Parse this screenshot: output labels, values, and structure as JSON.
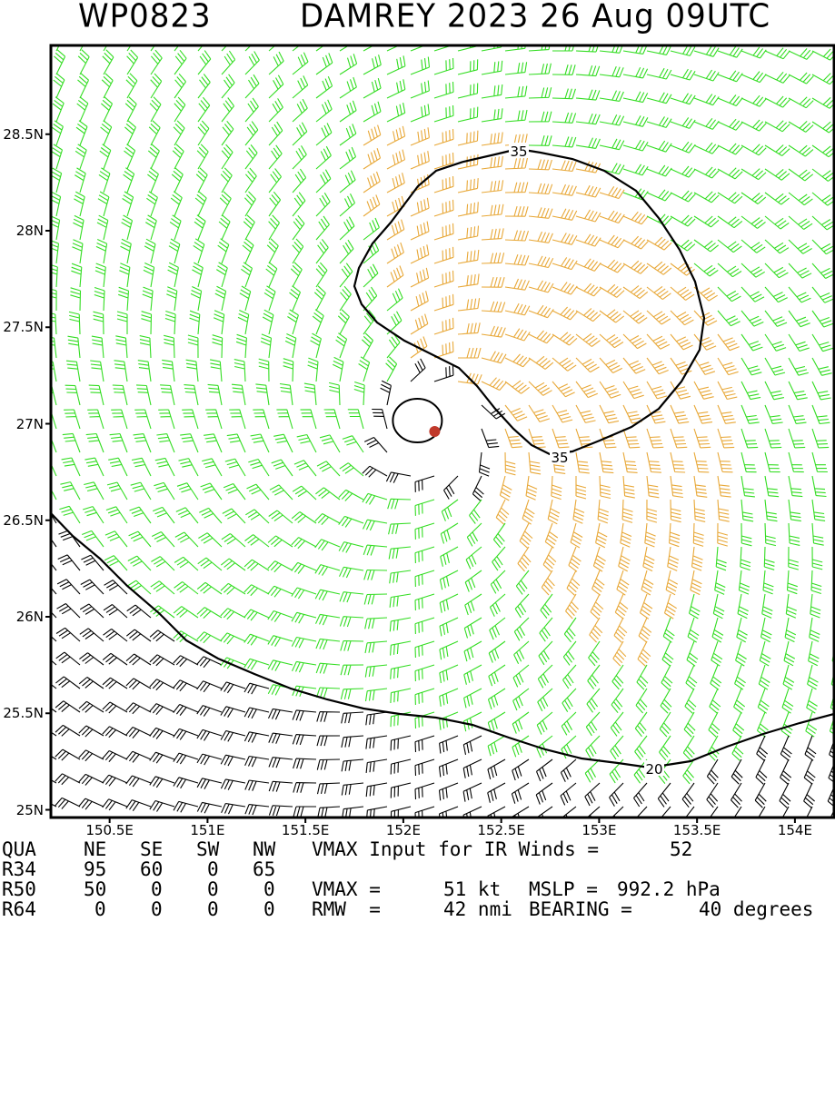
{
  "title": {
    "storm_id": "WP0823",
    "storm_info": "DAMREY 2023 26 Aug 09UTC"
  },
  "map": {
    "lat_range": [
      24.96,
      28.96
    ],
    "lon_range": [
      150.2,
      154.2
    ],
    "lat_ticks": [
      "28.5N",
      "28N",
      "27.5N",
      "27N",
      "26.5N",
      "26N",
      "25.5N",
      "25N"
    ],
    "lat_tick_values": [
      28.5,
      28.0,
      27.5,
      27.0,
      26.5,
      26.0,
      25.5,
      25.0
    ],
    "lon_ticks": [
      "150.5E",
      "151E",
      "151.5E",
      "152E",
      "152.5E",
      "153E",
      "153.5E",
      "154E"
    ],
    "lon_tick_values": [
      150.5,
      151.0,
      151.5,
      152.0,
      152.5,
      153.0,
      153.5,
      154.0
    ],
    "center": {
      "lat": 26.96,
      "lon": 152.16
    },
    "contours": [
      {
        "label": "35",
        "level_kt": 35
      },
      {
        "label": "20",
        "level_kt": 20
      }
    ],
    "colors": {
      "barb_low": "#000000",
      "barb_mid": "#33dd22",
      "barb_high": "#e8a838",
      "center_marker": "#c0392b",
      "contour": "#000000"
    }
  },
  "info": {
    "quadrants_header": [
      "QUA",
      "NE",
      "SE",
      "SW",
      "NW"
    ],
    "rows": [
      [
        "R34",
        "95",
        "60",
        "0",
        "65"
      ],
      [
        "R50",
        "50",
        "0",
        "0",
        "0"
      ],
      [
        "R64",
        "0",
        "0",
        "0",
        "0"
      ]
    ],
    "vmax_input_label": "VMAX Input for IR Winds =",
    "vmax_input_value": "52",
    "vmax_label": "VMAX =",
    "vmax_value": "51 kt",
    "mslp_label": "MSLP =",
    "mslp_value": "992.2 hPa",
    "rmw_label": "RMW  =",
    "rmw_value": "42 nmi",
    "bearing_label": "BEARING =",
    "bearing_value": "40 degrees"
  }
}
